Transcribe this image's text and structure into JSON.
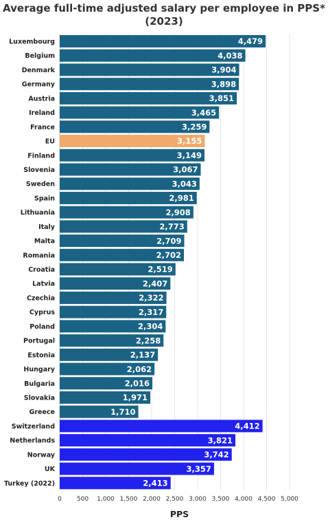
{
  "chart_data": {
    "type": "bar",
    "orientation": "horizontal",
    "title_lines": [
      "Average full-time adjusted salary per employee in PPS*",
      "(2023)"
    ],
    "xlabel": "PPS",
    "ylabel": "",
    "xlim": [
      0,
      5000
    ],
    "xticks": [
      "0",
      "500",
      "1,000",
      "1,500",
      "2,000",
      "2,500",
      "3,000",
      "3,500",
      "4,000",
      "4,500",
      "5,000"
    ],
    "xtick_values": [
      0,
      500,
      1000,
      1500,
      2000,
      2500,
      3000,
      3500,
      4000,
      4500,
      5000
    ],
    "grid": true,
    "colors": {
      "eu_member": "#1b6385",
      "eu_average": "#f0aa6c",
      "non_eu": "#2222ee"
    },
    "categories": [
      "Luxembourg",
      "Belgium",
      "Denmark",
      "Germany",
      "Austria",
      "Ireland",
      "France",
      "EU",
      "Finland",
      "Slovenia",
      "Sweden",
      "Spain",
      "Lithuania",
      "Italy",
      "Malta",
      "Romania",
      "Croatia",
      "Latvia",
      "Czechia",
      "Cyprus",
      "Poland",
      "Portugal",
      "Estonia",
      "Hungary",
      "Bulgaria",
      "Slovakia",
      "Greece",
      "Switzerland",
      "Netherlands",
      "Norway",
      "UK",
      "Turkey (2022)"
    ],
    "values": [
      4479,
      4038,
      3904,
      3898,
      3851,
      3465,
      3259,
      3155,
      3149,
      3067,
      3043,
      2981,
      2908,
      2773,
      2709,
      2702,
      2519,
      2407,
      2322,
      2317,
      2304,
      2258,
      2137,
      2062,
      2016,
      1971,
      1710,
      4412,
      3821,
      3742,
      3357,
      2413
    ],
    "value_labels": [
      "4,479",
      "4,038",
      "3,904",
      "3,898",
      "3,851",
      "3,465",
      "3,259",
      "3,155",
      "3,149",
      "3,067",
      "3,043",
      "2,981",
      "2,908",
      "2,773",
      "2,709",
      "2,702",
      "2,519",
      "2,407",
      "2,322",
      "2,317",
      "2,304",
      "2,258",
      "2,137",
      "2,062",
      "2,016",
      "1,971",
      "1,710",
      "4,412",
      "3,821",
      "3,742",
      "3,357",
      "2,413"
    ],
    "groups": [
      "eu_member",
      "eu_member",
      "eu_member",
      "eu_member",
      "eu_member",
      "eu_member",
      "eu_member",
      "eu_average",
      "eu_member",
      "eu_member",
      "eu_member",
      "eu_member",
      "eu_member",
      "eu_member",
      "eu_member",
      "eu_member",
      "eu_member",
      "eu_member",
      "eu_member",
      "eu_member",
      "eu_member",
      "eu_member",
      "eu_member",
      "eu_member",
      "eu_member",
      "eu_member",
      "eu_member",
      "non_eu",
      "non_eu",
      "non_eu",
      "non_eu",
      "non_eu"
    ]
  }
}
